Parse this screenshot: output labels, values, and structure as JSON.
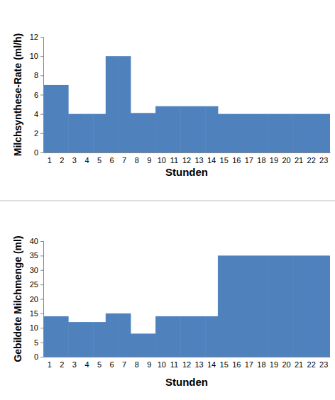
{
  "chart_data": [
    {
      "type": "bar",
      "categories": [
        "1",
        "2",
        "3",
        "4",
        "5",
        "6",
        "7",
        "8",
        "9",
        "10",
        "11",
        "12",
        "13",
        "14",
        "15",
        "16",
        "17",
        "18",
        "19",
        "20",
        "21",
        "22",
        "23"
      ],
      "values": [
        7,
        7,
        4,
        4,
        4,
        10,
        10,
        4.1,
        4.1,
        4.8,
        4.8,
        4.8,
        4.8,
        4.8,
        4,
        4,
        4,
        4,
        4,
        4,
        4,
        4,
        4
      ],
      "color": "#4f81bd",
      "x_label": "Stunden",
      "y_label": "Milchsynthese-Rate (ml/h)",
      "ylim": [
        0,
        12
      ],
      "yticks": [
        0,
        2,
        4,
        6,
        8,
        10,
        12
      ],
      "grid": false
    },
    {
      "type": "bar",
      "categories": [
        "1",
        "2",
        "3",
        "4",
        "5",
        "6",
        "7",
        "8",
        "9",
        "10",
        "11",
        "12",
        "13",
        "14",
        "15",
        "16",
        "17",
        "18",
        "19",
        "20",
        "21",
        "22",
        "23"
      ],
      "values": [
        14,
        14,
        12,
        12,
        12,
        15,
        15,
        8,
        8,
        14,
        14,
        14,
        14,
        14,
        35,
        35,
        35,
        35,
        35,
        35,
        35,
        35,
        35
      ],
      "color": "#4f81bd",
      "x_label": "Stunden",
      "y_label": "Gebildete Milchmenge (ml)",
      "ylim": [
        0,
        40
      ],
      "yticks": [
        0,
        5,
        10,
        15,
        20,
        25,
        30,
        35,
        40
      ],
      "grid": false
    }
  ]
}
